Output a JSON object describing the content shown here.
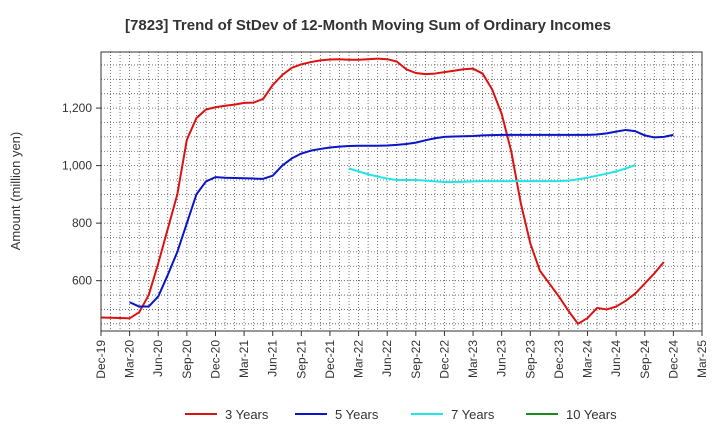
{
  "chart_data": {
    "type": "line",
    "title": "[7823]  Trend of StDev of 12-Month Moving Sum of Ordinary Incomes",
    "ylabel": "Amount (million yen)",
    "xlabel": "",
    "x_ticks": [
      "Dec-19",
      "Mar-20",
      "Jun-20",
      "Sep-20",
      "Dec-20",
      "Mar-21",
      "Jun-21",
      "Sep-21",
      "Dec-21",
      "Mar-22",
      "Jun-22",
      "Sep-22",
      "Dec-22",
      "Mar-23",
      "Jun-23",
      "Sep-23",
      "Dec-23",
      "Mar-24",
      "Jun-24",
      "Sep-24",
      "Dec-24",
      "Mar-25"
    ],
    "y_ticks": [
      600,
      800,
      1000,
      1200
    ],
    "y_tick_labels": [
      "600",
      "800",
      "1,000",
      "1,200"
    ],
    "ylim": [
      425,
      1395
    ],
    "grid": true,
    "legend_position": "bottom",
    "series": [
      {
        "name": "3 Years",
        "color": "#dd1111",
        "start": "Dec-19",
        "values": [
          472,
          471,
          470,
          469,
          490,
          550,
          660,
          780,
          900,
          1090,
          1165,
          1195,
          1203,
          1208,
          1212,
          1218,
          1219,
          1232,
          1280,
          1315,
          1340,
          1352,
          1360,
          1366,
          1369,
          1370,
          1368,
          1368,
          1370,
          1372,
          1370,
          1362,
          1335,
          1322,
          1318,
          1320,
          1325,
          1330,
          1335,
          1337,
          1320,
          1265,
          1180,
          1050,
          870,
          730,
          635,
          590,
          545,
          495,
          450,
          470,
          505,
          500,
          510,
          530,
          555,
          590,
          625,
          665
        ]
      },
      {
        "name": "5 Years",
        "color": "#0a14c8",
        "start": "Mar-20",
        "values": [
          525,
          510,
          510,
          545,
          620,
          700,
          800,
          900,
          945,
          960,
          958,
          957,
          956,
          955,
          954,
          965,
          1000,
          1025,
          1042,
          1052,
          1058,
          1063,
          1066,
          1068,
          1069,
          1069,
          1069,
          1070,
          1072,
          1075,
          1080,
          1088,
          1095,
          1100,
          1101,
          1102,
          1103,
          1105,
          1106,
          1107,
          1107,
          1107,
          1107,
          1107,
          1107,
          1107,
          1107,
          1107,
          1107,
          1108,
          1112,
          1118,
          1124,
          1120,
          1105,
          1098,
          1100,
          1107
        ]
      },
      {
        "name": "7 Years",
        "color": "#22e5e5",
        "start": "Feb-22",
        "values": [
          990,
          980,
          970,
          962,
          955,
          950,
          950,
          950,
          948,
          945,
          943,
          943,
          944,
          945,
          946,
          946,
          946,
          946,
          946,
          946,
          946,
          946,
          946,
          948,
          952,
          958,
          965,
          972,
          980,
          990,
          1002
        ]
      },
      {
        "name": "10 Years",
        "color": "#1a8a1a",
        "start": "",
        "values": []
      }
    ]
  }
}
